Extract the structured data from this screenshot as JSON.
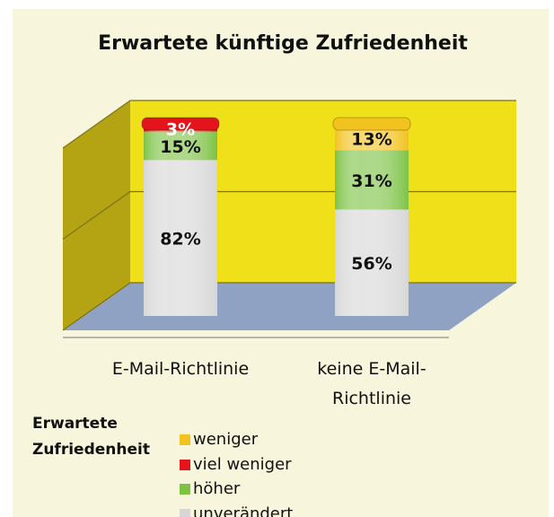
{
  "chart_data": {
    "type": "bar3d-stacked",
    "title": "Erwartete künftige Zufriedenheit",
    "categories": [
      "E-Mail-Richtlinie",
      "keine E-Mail-Richtlinie"
    ],
    "series": [
      {
        "name": "unverändert",
        "color": "#d6d6d6",
        "values": [
          82,
          56
        ],
        "value_labels": [
          "82%",
          "56%"
        ]
      },
      {
        "name": "höher",
        "color": "#7cc243",
        "values": [
          15,
          31
        ],
        "value_labels": [
          "15%",
          "31%"
        ]
      },
      {
        "name": "viel weniger",
        "color": "#e3141b",
        "values": [
          3,
          null
        ],
        "value_labels": [
          "3%",
          null
        ]
      },
      {
        "name": "weniger",
        "color": "#f2c21e",
        "values": [
          null,
          13
        ],
        "value_labels": [
          null,
          "13%"
        ]
      }
    ],
    "legend_title": "Erwartete Zufriedenheit",
    "ylim": [
      0,
      100
    ],
    "yticks": [
      0,
      50,
      100
    ],
    "grid": true
  }
}
